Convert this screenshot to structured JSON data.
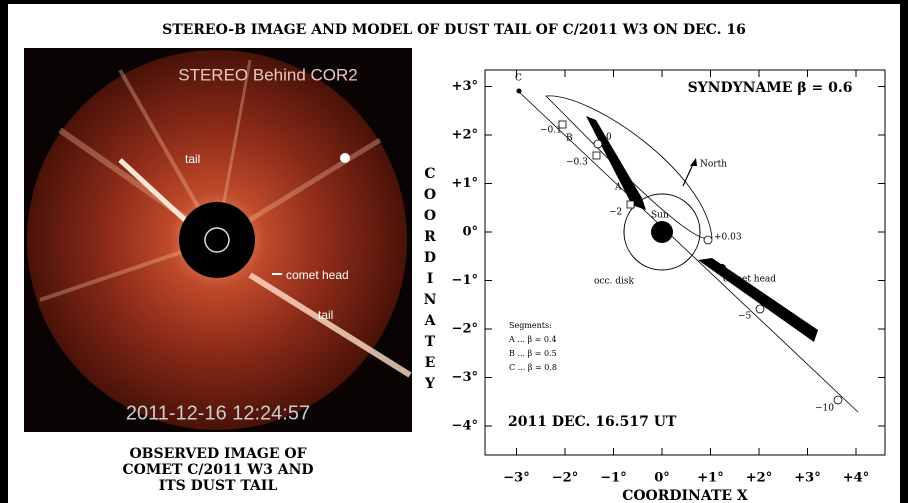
{
  "title": "STEREO-B IMAGE AND MODEL OF DUST TAIL OF C/2011 W3 ON DEC. 16",
  "image": {
    "instrument": "STEREO Behind COR2",
    "labels": [
      "tail",
      "comet head",
      "tail"
    ],
    "timestamp": "2011-12-16 12:24:57",
    "caption": [
      "OBSERVED IMAGE OF",
      "COMET C/2011 W3 AND",
      "ITS DUST TAIL"
    ]
  },
  "plot": {
    "title": "SYNDYNAME β = 0.6",
    "date": "2011 DEC. 16.517 UT",
    "xlabel": "COORDINATE X",
    "ylabel": "COORDINATE Y",
    "xticks": [
      {
        "value": -3,
        "label": "−3°"
      },
      {
        "value": -2,
        "label": "−2°"
      },
      {
        "value": -1,
        "label": "−1°"
      },
      {
        "value": 0,
        "label": "0°"
      },
      {
        "value": 1,
        "label": "+1°"
      },
      {
        "value": 2,
        "label": "+2°"
      },
      {
        "value": 3,
        "label": "+3°"
      },
      {
        "value": 4,
        "label": "+4°"
      }
    ],
    "yticks": [
      {
        "value": 3,
        "label": "+3°"
      },
      {
        "value": 2,
        "label": "+2°"
      },
      {
        "value": 1,
        "label": "+1°"
      },
      {
        "value": 0,
        "label": "0°"
      },
      {
        "value": -1,
        "label": "−1°"
      },
      {
        "value": -2,
        "label": "−2°"
      },
      {
        "value": -3,
        "label": "−3°"
      },
      {
        "value": -4,
        "label": "−4°"
      }
    ],
    "annotations": [
      "C",
      "−0.1",
      "B",
      "0",
      "−0.3",
      "A",
      "−2",
      "Sun",
      "+0.03",
      "comet head",
      "occ. disk",
      "−5",
      "−10",
      "North"
    ],
    "legend": {
      "title": "Segments:",
      "items": [
        "A ... β = 0.4",
        "B ... β = 0.5",
        "C ... β = 0.8"
      ]
    }
  }
}
